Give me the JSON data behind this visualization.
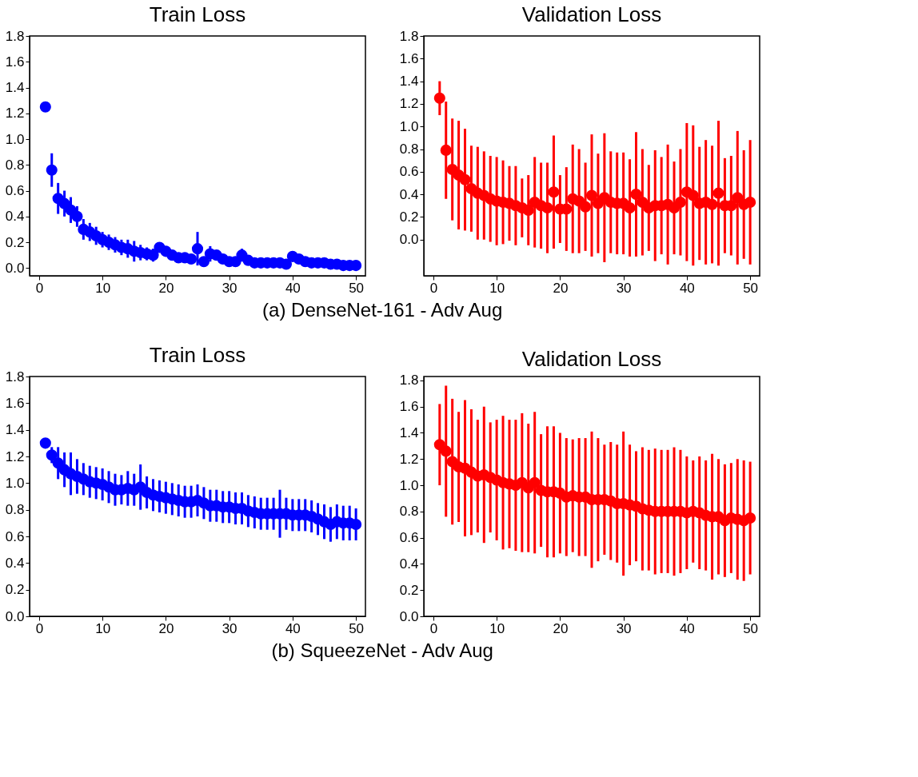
{
  "chart_data": [
    {
      "type": "scatter",
      "title": "Train Loss",
      "color": "#0000ff",
      "marker": "circle",
      "grid": false,
      "annotations": [
        "(a) DenseNet-161 -  Adv Aug"
      ],
      "x": [
        1,
        2,
        3,
        4,
        5,
        6,
        7,
        8,
        9,
        10,
        11,
        12,
        13,
        14,
        15,
        16,
        17,
        18,
        19,
        20,
        21,
        22,
        23,
        24,
        25,
        26,
        27,
        28,
        29,
        30,
        31,
        32,
        33,
        34,
        35,
        36,
        37,
        38,
        39,
        40,
        41,
        42,
        43,
        44,
        45,
        46,
        47,
        48,
        49,
        50
      ],
      "values": [
        1.25,
        0.76,
        0.54,
        0.5,
        0.45,
        0.4,
        0.3,
        0.28,
        0.25,
        0.22,
        0.2,
        0.18,
        0.16,
        0.15,
        0.13,
        0.12,
        0.11,
        0.1,
        0.16,
        0.13,
        0.1,
        0.08,
        0.08,
        0.07,
        0.15,
        0.05,
        0.11,
        0.1,
        0.07,
        0.05,
        0.05,
        0.1,
        0.06,
        0.04,
        0.04,
        0.04,
        0.04,
        0.04,
        0.03,
        0.09,
        0.07,
        0.05,
        0.04,
        0.04,
        0.04,
        0.03,
        0.03,
        0.02,
        0.02,
        0.02
      ],
      "errors": [
        0.02,
        0.13,
        0.12,
        0.1,
        0.1,
        0.08,
        0.08,
        0.07,
        0.07,
        0.06,
        0.06,
        0.06,
        0.06,
        0.07,
        0.08,
        0.06,
        0.05,
        0.05,
        0.04,
        0.04,
        0.03,
        0.03,
        0.03,
        0.03,
        0.13,
        0.03,
        0.06,
        0.03,
        0.03,
        0.03,
        0.03,
        0.05,
        0.03,
        0.03,
        0.03,
        0.03,
        0.03,
        0.03,
        0.03,
        0.04,
        0.03,
        0.03,
        0.03,
        0.03,
        0.03,
        0.03,
        0.03,
        0.03,
        0.03,
        0.03
      ],
      "xlim": [
        -1.5,
        51.5
      ],
      "xticks": [
        0,
        10,
        20,
        30,
        40,
        50
      ],
      "ylim": [
        -0.06,
        1.8
      ],
      "yticks": [
        {
          "value": 0,
          "label": "0.0"
        },
        {
          "value": 0.2,
          "label": "0.2"
        },
        {
          "value": 0.4,
          "label": "0.4"
        },
        {
          "value": 0.6,
          "label": "0.6"
        },
        {
          "value": 0.8,
          "label": "0.8"
        },
        {
          "value": 1,
          "label": "1.0"
        },
        {
          "value": 1.2,
          "label": "1.2"
        },
        {
          "value": 1.4,
          "label": "1.4"
        },
        {
          "value": 1.6,
          "label": "1.6"
        },
        {
          "value": 1.8,
          "label": "1.8"
        }
      ]
    },
    {
      "type": "scatter",
      "title": "Validation Loss",
      "color": "#ff0000",
      "marker": "circle",
      "grid": false,
      "x": [
        1,
        2,
        3,
        4,
        5,
        6,
        7,
        8,
        9,
        10,
        11,
        12,
        13,
        14,
        15,
        16,
        17,
        18,
        19,
        20,
        21,
        22,
        23,
        24,
        25,
        26,
        27,
        28,
        29,
        30,
        31,
        32,
        33,
        34,
        35,
        36,
        37,
        38,
        39,
        40,
        41,
        42,
        43,
        44,
        45,
        46,
        47,
        48,
        49,
        50
      ],
      "values": [
        1.25,
        0.79,
        0.62,
        0.57,
        0.53,
        0.45,
        0.41,
        0.39,
        0.36,
        0.34,
        0.33,
        0.32,
        0.3,
        0.28,
        0.26,
        0.33,
        0.3,
        0.28,
        0.42,
        0.27,
        0.27,
        0.36,
        0.34,
        0.29,
        0.39,
        0.32,
        0.37,
        0.33,
        0.32,
        0.32,
        0.28,
        0.4,
        0.33,
        0.28,
        0.3,
        0.3,
        0.31,
        0.28,
        0.33,
        0.42,
        0.39,
        0.32,
        0.33,
        0.31,
        0.41,
        0.3,
        0.3,
        0.37,
        0.31,
        0.33
      ],
      "errors": [
        0.15,
        0.43,
        0.45,
        0.48,
        0.45,
        0.38,
        0.41,
        0.39,
        0.38,
        0.39,
        0.37,
        0.33,
        0.35,
        0.26,
        0.31,
        0.4,
        0.38,
        0.4,
        0.5,
        0.3,
        0.37,
        0.48,
        0.46,
        0.39,
        0.54,
        0.44,
        0.57,
        0.45,
        0.45,
        0.45,
        0.43,
        0.55,
        0.47,
        0.38,
        0.49,
        0.43,
        0.53,
        0.41,
        0.47,
        0.61,
        0.62,
        0.5,
        0.55,
        0.52,
        0.64,
        0.42,
        0.44,
        0.59,
        0.48,
        0.55
      ],
      "xlim": [
        -1.5,
        51.5
      ],
      "xticks": [
        0,
        10,
        20,
        30,
        40,
        50
      ],
      "ylim": [
        -0.32,
        1.8
      ],
      "yticks": [
        {
          "value": 0,
          "label": "0.0"
        },
        {
          "value": 0.2,
          "label": "0.2"
        },
        {
          "value": 0.4,
          "label": "0.4"
        },
        {
          "value": 0.6,
          "label": "0.6"
        },
        {
          "value": 0.8,
          "label": "0.8"
        },
        {
          "value": 1,
          "label": "1.0"
        },
        {
          "value": 1.2,
          "label": "1.2"
        },
        {
          "value": 1.4,
          "label": "1.4"
        },
        {
          "value": 1.6,
          "label": "1.6"
        },
        {
          "value": 1.8,
          "label": "1.8"
        }
      ]
    },
    {
      "type": "scatter",
      "title": "Train Loss",
      "color": "#0000ff",
      "marker": "circle",
      "grid": false,
      "annotations": [
        "(b) SqueezeNet - Adv Aug"
      ],
      "x": [
        1,
        2,
        3,
        4,
        5,
        6,
        7,
        8,
        9,
        10,
        11,
        12,
        13,
        14,
        15,
        16,
        17,
        18,
        19,
        20,
        21,
        22,
        23,
        24,
        25,
        26,
        27,
        28,
        29,
        30,
        31,
        32,
        33,
        34,
        35,
        36,
        37,
        38,
        39,
        40,
        41,
        42,
        43,
        44,
        45,
        46,
        47,
        48,
        49,
        50
      ],
      "values": [
        1.3,
        1.21,
        1.15,
        1.1,
        1.07,
        1.05,
        1.03,
        1.01,
        1.0,
        0.99,
        0.97,
        0.95,
        0.95,
        0.96,
        0.95,
        0.97,
        0.93,
        0.91,
        0.9,
        0.89,
        0.88,
        0.87,
        0.86,
        0.86,
        0.87,
        0.85,
        0.83,
        0.83,
        0.82,
        0.82,
        0.81,
        0.81,
        0.79,
        0.78,
        0.77,
        0.77,
        0.77,
        0.77,
        0.77,
        0.76,
        0.76,
        0.76,
        0.75,
        0.73,
        0.71,
        0.69,
        0.71,
        0.7,
        0.7,
        0.69
      ],
      "errors": [
        0.03,
        0.06,
        0.12,
        0.13,
        0.16,
        0.13,
        0.12,
        0.12,
        0.12,
        0.12,
        0.12,
        0.12,
        0.11,
        0.13,
        0.12,
        0.17,
        0.12,
        0.12,
        0.12,
        0.12,
        0.12,
        0.12,
        0.12,
        0.12,
        0.12,
        0.12,
        0.12,
        0.12,
        0.12,
        0.12,
        0.12,
        0.12,
        0.12,
        0.12,
        0.12,
        0.12,
        0.12,
        0.18,
        0.12,
        0.12,
        0.12,
        0.12,
        0.12,
        0.12,
        0.13,
        0.13,
        0.13,
        0.13,
        0.13,
        0.12
      ],
      "xlim": [
        -1.5,
        51.5
      ],
      "xticks": [
        0,
        10,
        20,
        30,
        40,
        50
      ],
      "ylim": [
        0,
        1.8
      ],
      "yticks": [
        {
          "value": 0,
          "label": "0.0"
        },
        {
          "value": 0.2,
          "label": "0.2"
        },
        {
          "value": 0.4,
          "label": "0.4"
        },
        {
          "value": 0.6,
          "label": "0.6"
        },
        {
          "value": 0.8,
          "label": "0.8"
        },
        {
          "value": 1,
          "label": "1.0"
        },
        {
          "value": 1.2,
          "label": "1.2"
        },
        {
          "value": 1.4,
          "label": "1.4"
        },
        {
          "value": 1.6,
          "label": "1.6"
        },
        {
          "value": 1.8,
          "label": "1.8"
        }
      ]
    },
    {
      "type": "scatter",
      "title": "Validation Loss",
      "color": "#ff0000",
      "marker": "circle",
      "grid": false,
      "x": [
        1,
        2,
        3,
        4,
        5,
        6,
        7,
        8,
        9,
        10,
        11,
        12,
        13,
        14,
        15,
        16,
        17,
        18,
        19,
        20,
        21,
        22,
        23,
        24,
        25,
        26,
        27,
        28,
        29,
        30,
        31,
        32,
        33,
        34,
        35,
        36,
        37,
        38,
        39,
        40,
        41,
        42,
        43,
        44,
        45,
        46,
        47,
        48,
        49,
        50
      ],
      "values": [
        1.31,
        1.26,
        1.18,
        1.14,
        1.13,
        1.1,
        1.07,
        1.08,
        1.06,
        1.04,
        1.02,
        1.01,
        1.0,
        1.02,
        0.98,
        1.02,
        0.96,
        0.95,
        0.95,
        0.94,
        0.91,
        0.92,
        0.91,
        0.91,
        0.89,
        0.89,
        0.89,
        0.88,
        0.86,
        0.86,
        0.85,
        0.84,
        0.82,
        0.81,
        0.8,
        0.8,
        0.8,
        0.8,
        0.8,
        0.79,
        0.8,
        0.79,
        0.77,
        0.76,
        0.76,
        0.73,
        0.75,
        0.74,
        0.73,
        0.75
      ],
      "errors": [
        0.31,
        0.5,
        0.48,
        0.42,
        0.52,
        0.48,
        0.43,
        0.52,
        0.42,
        0.46,
        0.51,
        0.49,
        0.5,
        0.53,
        0.49,
        0.54,
        0.43,
        0.5,
        0.5,
        0.46,
        0.45,
        0.43,
        0.45,
        0.45,
        0.52,
        0.47,
        0.42,
        0.45,
        0.45,
        0.55,
        0.46,
        0.42,
        0.47,
        0.46,
        0.48,
        0.47,
        0.47,
        0.49,
        0.47,
        0.43,
        0.39,
        0.43,
        0.42,
        0.48,
        0.44,
        0.43,
        0.42,
        0.46,
        0.46,
        0.43
      ],
      "xlim": [
        -1.5,
        51.5
      ],
      "xticks": [
        0,
        10,
        20,
        30,
        40,
        50
      ],
      "ylim": [
        0,
        1.83
      ],
      "yticks": [
        {
          "value": 0,
          "label": "0.0"
        },
        {
          "value": 0.2,
          "label": "0.2"
        },
        {
          "value": 0.4,
          "label": "0.4"
        },
        {
          "value": 0.6,
          "label": "0.6"
        },
        {
          "value": 0.8,
          "label": "0.8"
        },
        {
          "value": 1,
          "label": "1.0"
        },
        {
          "value": 1.2,
          "label": "1.2"
        },
        {
          "value": 1.4,
          "label": "1.4"
        },
        {
          "value": 1.6,
          "label": "1.6"
        },
        {
          "value": 1.8,
          "label": "1.8"
        }
      ]
    }
  ]
}
